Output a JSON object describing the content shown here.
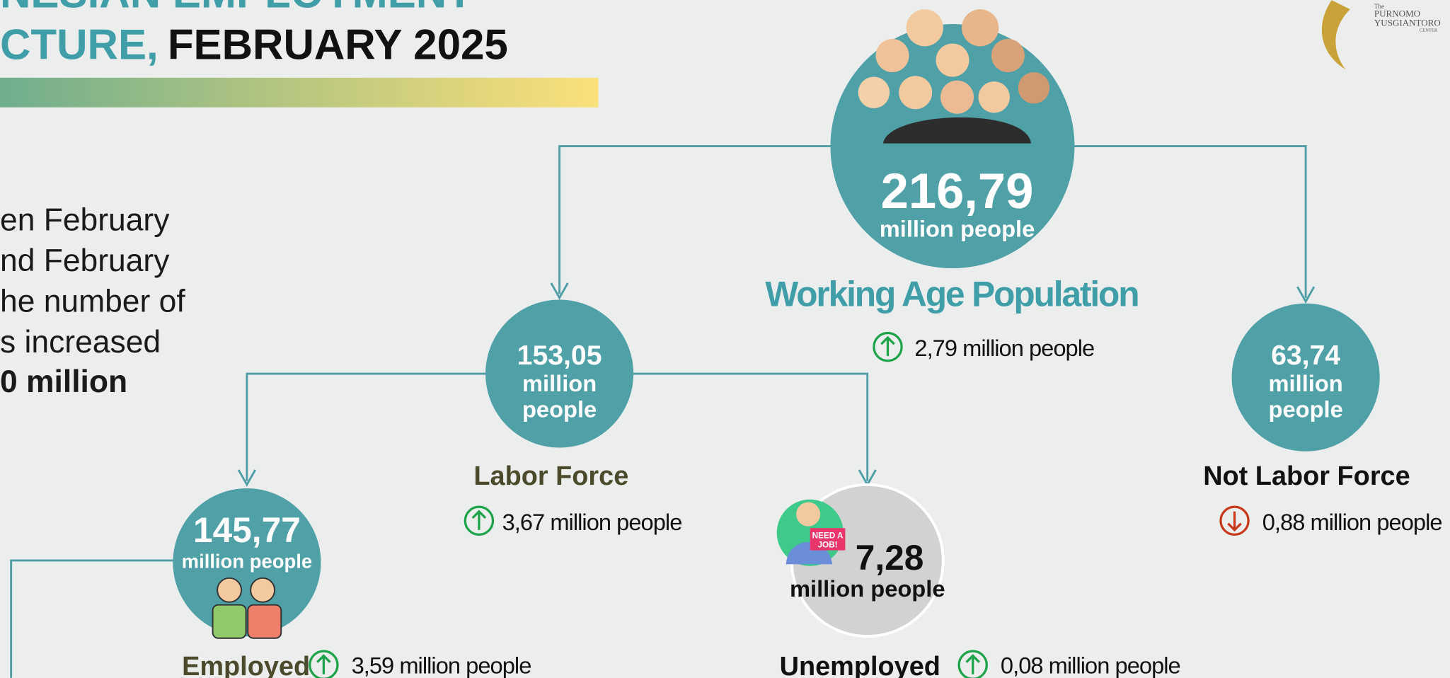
{
  "header": {
    "title_line1": "NESIAN EMPLOYMENT",
    "title_line2_colored": "CTURE,",
    "title_line2_dark": "FEBRUARY 2025"
  },
  "intro": {
    "lines": [
      "en February",
      "nd February",
      "he number of",
      "s increased"
    ],
    "bold": "0 million"
  },
  "logo": {
    "small": "The",
    "name1": "PURNOMO",
    "name2": "YUSGIANTORO",
    "name3": "CENTER"
  },
  "nodes": [
    {
      "value": "216,79",
      "unit_lines": [
        "million people"
      ],
      "label": "Working Age Population",
      "change": "2,79 million people"
    },
    {
      "value": "153,05",
      "unit_lines": [
        "million",
        "people"
      ],
      "label": "Labor Force",
      "change": "3,67 million people"
    },
    {
      "value": "63,74",
      "unit_lines": [
        "million",
        "people"
      ],
      "label": "Not Labor Force",
      "change": "0,88 million people"
    },
    {
      "value": "145,77",
      "unit_lines": [
        "million people"
      ],
      "label": "Employed",
      "change": "3,59 million people"
    },
    {
      "value": "7,28",
      "unit_lines": [
        "million people"
      ],
      "label": "Unemployed",
      "change": "0,08 million people",
      "icon_text": [
        "NEED A",
        "JOB!"
      ]
    }
  ]
}
